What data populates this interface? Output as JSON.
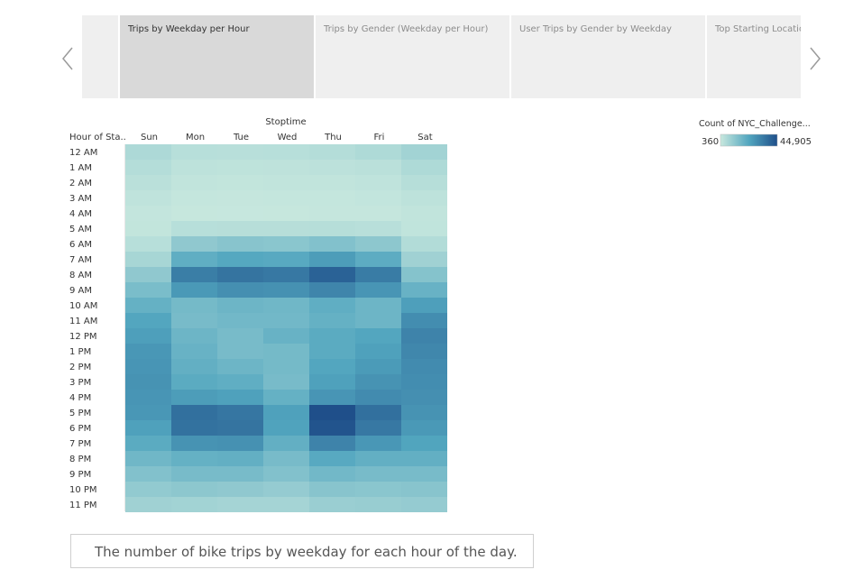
{
  "story": {
    "tabs": [
      {
        "label": "",
        "active": false
      },
      {
        "label": "Trips by Weekday per Hour",
        "active": true
      },
      {
        "label": "Trips by Gender (Weekday per Hour)",
        "active": false
      },
      {
        "label": "User Trips by Gender by Weekday",
        "active": false
      },
      {
        "label": "Top Starting Locatio",
        "active": false
      }
    ],
    "prev_icon": "chevron-left-icon",
    "next_icon": "chevron-right-icon"
  },
  "caption": "The number of bike trips by weekday for each hour of the day.",
  "chart_data": {
    "type": "heatmap",
    "column_group_title": "Stoptime",
    "row_header": "Hour of Sta..",
    "columns": [
      "Sun",
      "Mon",
      "Tue",
      "Wed",
      "Thu",
      "Fri",
      "Sat"
    ],
    "rows": [
      "12 AM",
      "1 AM",
      "2 AM",
      "3 AM",
      "4 AM",
      "5 AM",
      "6 AM",
      "7 AM",
      "8 AM",
      "9 AM",
      "10 AM",
      "11 AM",
      "12 PM",
      "1 PM",
      "2 PM",
      "3 PM",
      "4 PM",
      "5 PM",
      "6 PM",
      "7 PM",
      "8 PM",
      "9 PM",
      "10 PM",
      "11 PM"
    ],
    "values": [
      [
        5500,
        3500,
        3300,
        3500,
        4200,
        5200,
        7500
      ],
      [
        4200,
        2400,
        2200,
        2300,
        2600,
        3000,
        5200
      ],
      [
        3000,
        1600,
        1500,
        1600,
        1700,
        2000,
        3800
      ],
      [
        2000,
        1100,
        1000,
        1100,
        1200,
        1400,
        2500
      ],
      [
        1300,
        800,
        700,
        800,
        900,
        1000,
        1600
      ],
      [
        1500,
        3500,
        3600,
        3600,
        3800,
        3300,
        1800
      ],
      [
        3500,
        11000,
        12500,
        12000,
        13500,
        11500,
        4500
      ],
      [
        6500,
        20000,
        22000,
        21500,
        25000,
        20500,
        8000
      ],
      [
        11000,
        33000,
        35500,
        34500,
        40000,
        33500,
        13000
      ],
      [
        15000,
        26000,
        28500,
        28000,
        31000,
        27000,
        18500
      ],
      [
        19000,
        16000,
        17500,
        17000,
        20000,
        17500,
        24500
      ],
      [
        22500,
        15500,
        16500,
        16500,
        19000,
        17500,
        29000
      ],
      [
        24500,
        17500,
        15500,
        18500,
        21000,
        22500,
        31500
      ],
      [
        26500,
        18500,
        15500,
        16000,
        21000,
        24000,
        30500
      ],
      [
        27000,
        19500,
        17500,
        16000,
        22500,
        25500,
        29500
      ],
      [
        27500,
        21000,
        20000,
        15500,
        24000,
        27500,
        29000
      ],
      [
        27000,
        25000,
        24000,
        19000,
        27000,
        29500,
        28500
      ],
      [
        26500,
        36500,
        35000,
        24000,
        44905,
        36500,
        27500
      ],
      [
        24000,
        36000,
        35500,
        23500,
        43500,
        34500,
        26000
      ],
      [
        21000,
        27500,
        28000,
        19500,
        31500,
        26500,
        23000
      ],
      [
        17000,
        19000,
        19500,
        15500,
        21500,
        19500,
        19500
      ],
      [
        13500,
        15500,
        15500,
        13500,
        16500,
        15500,
        15500
      ],
      [
        10500,
        11500,
        11000,
        10000,
        12500,
        12000,
        12500
      ],
      [
        8000,
        7500,
        7000,
        7000,
        9000,
        9500,
        10000
      ]
    ],
    "color_min": 360,
    "color_max": 44905,
    "color_low": "#c8e8de",
    "color_high": "#1f4f8a",
    "legend": {
      "title": "Count of NYC_Challenge...",
      "min_label": "360",
      "max_label": "44,905"
    }
  }
}
